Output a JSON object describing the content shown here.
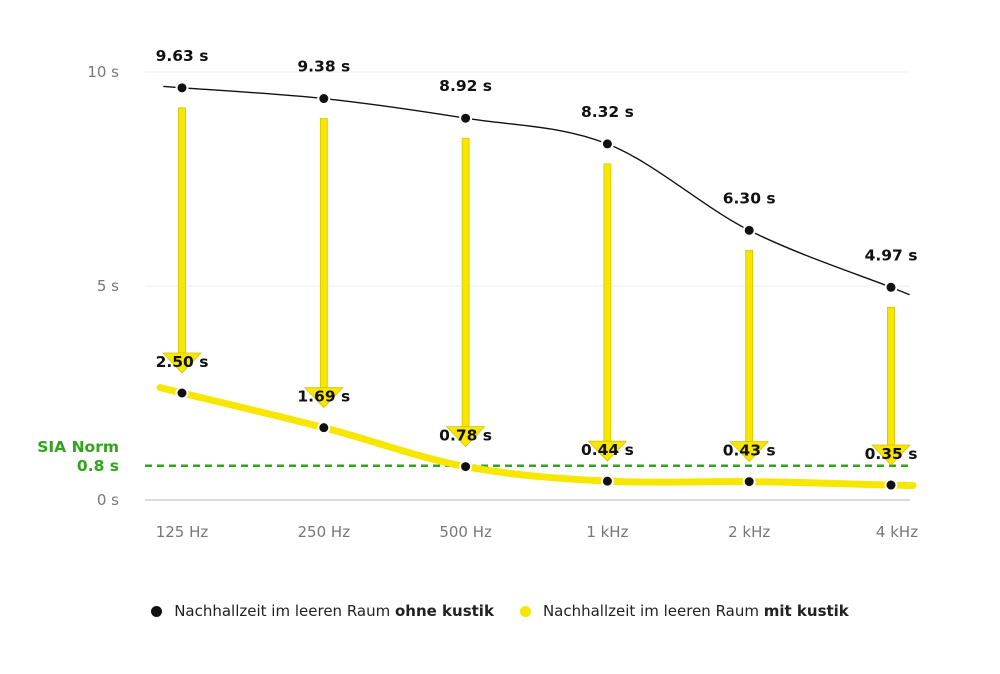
{
  "chart_data": {
    "type": "line",
    "categories": [
      "125 Hz",
      "250 Hz",
      "500 Hz",
      "1 kHz",
      "2 kHz",
      "4 kHz"
    ],
    "y_ticks": [
      "0 s",
      "5 s",
      "10 s"
    ],
    "y_tick_values": [
      0,
      5,
      10
    ],
    "ylim": [
      0,
      10.5
    ],
    "grid": true,
    "series": [
      {
        "name": "Nachhallzeit im leeren Raum ohne kustik",
        "name_plain": "Nachhallzeit im leeren Raum ",
        "name_bold": "ohne kustik",
        "color": "#111111",
        "values": [
          9.63,
          9.38,
          8.92,
          8.32,
          6.3,
          4.97
        ],
        "labels": [
          "9.63 s",
          "9.38 s",
          "8.92 s",
          "8.32 s",
          "6.30 s",
          "4.97 s"
        ]
      },
      {
        "name": "Nachhallzeit im leeren Raum mit kustik",
        "name_plain": "Nachhallzeit im leeren Raum ",
        "name_bold": "mit kustik",
        "color": "#f7e600",
        "values": [
          2.5,
          1.69,
          0.78,
          0.44,
          0.43,
          0.35
        ],
        "labels": [
          "2.50 s",
          "1.69 s",
          "0.78 s",
          "0.44 s",
          "0.43 s",
          "0.35 s"
        ]
      }
    ],
    "reference_line": {
      "label_line1": "SIA Norm",
      "label_line2": "0.8 s",
      "value": 0.8,
      "color": "#2fa51a"
    },
    "arrow_color": "#f7e600",
    "legend_position": "bottom"
  }
}
